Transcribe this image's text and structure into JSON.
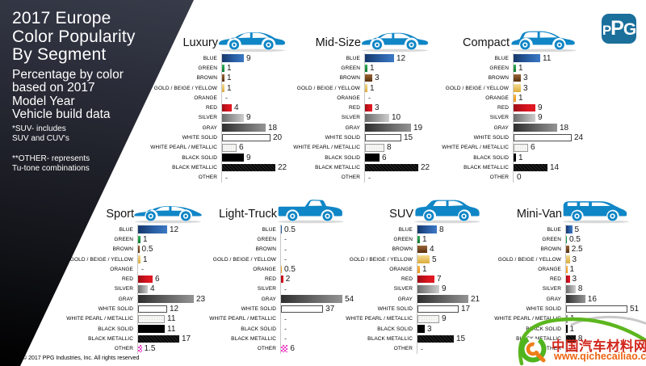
{
  "sidebar": {
    "title_lines": [
      "2017 Europe",
      "Color Popularity",
      "By Segment"
    ],
    "subtitle_lines": [
      "Percentage by color",
      "based on 2017",
      "Model Year",
      "Vehicle build data"
    ],
    "note1_lines": [
      "*SUV- includes",
      "SUV and CUV's"
    ],
    "note2_lines": [
      "**OTHER- represents",
      "Tu-tone combinations"
    ]
  },
  "logo": {
    "text": "PPG",
    "background": "#1a6f9b"
  },
  "footer": {
    "copyright": "© 2017 PPG Industries, Inc. All rights reserved"
  },
  "watermark": {
    "site_name": "中国汽车材料网",
    "site_url": "www.qichecailiao.com",
    "text_color": "#d2271c",
    "url_color": "#ee6410",
    "swoosh_green": "#5cb61f",
    "accent_orange": "#ef7d17"
  },
  "colors": {
    "car_blue": "#0f86c6",
    "palette": {
      "blue": "#2a5ea4",
      "green": "#1d9445",
      "brown": "#7a4a22",
      "gold": "#e8c367",
      "orange": "#f2a530",
      "red": "#d8141f",
      "silver": "#9c9c9c",
      "gray": "#5a5a5a",
      "white_solid": "#ffffff",
      "white_pearl": "#f6f6f4",
      "black_solid": "#000000",
      "black_metallic": "#060606",
      "other": "#ef3cc4"
    }
  },
  "chart_data": {
    "type": "bar",
    "orientation": "horizontal",
    "unit": "percent of builds",
    "title": "2017 Europe Color Popularity By Segment",
    "subtitle": "Percentage by color based on 2017 Model Year Vehicle build data",
    "categories": [
      "BLUE",
      "GREEN",
      "BROWN",
      "GOLD / BEIGE / YELLOW",
      "ORANGE",
      "RED",
      "SILVER",
      "GRAY",
      "WHITE SOLID",
      "WHITE PEARL / METALLIC",
      "BLACK SOLID",
      "BLACK METALLIC",
      "OTHER"
    ],
    "color_keys": [
      "blue",
      "green",
      "brown",
      "gold",
      "orange",
      "red",
      "silver",
      "gray",
      "white-solid",
      "white-pearl",
      "black-solid",
      "black-metallic",
      "other"
    ],
    "missing_marker": "-",
    "charts": [
      {
        "segment": "Luxury",
        "icon": "luxury-sedan-icon",
        "values": [
          "9",
          "1",
          "1",
          "1",
          "-",
          "4",
          "9",
          "18",
          "20",
          "6",
          "9",
          "22",
          "-"
        ]
      },
      {
        "segment": "Mid-Size",
        "icon": "mid-size-sedan-icon",
        "values": [
          "12",
          "1",
          "3",
          "1",
          "-",
          "3",
          "10",
          "19",
          "15",
          "8",
          "6",
          "22",
          "-"
        ]
      },
      {
        "segment": "Compact",
        "icon": "compact-hatchback-icon",
        "values": [
          "11",
          "1",
          "3",
          "3",
          "1",
          "9",
          "9",
          "18",
          "24",
          "6",
          "1",
          "14",
          "0"
        ]
      },
      {
        "segment": "Sport",
        "icon": "sport-car-icon",
        "values": [
          "12",
          "1",
          "0.5",
          "1",
          "-",
          "6",
          "4",
          "23",
          "12",
          "11",
          "11",
          "17",
          "1.5"
        ]
      },
      {
        "segment": "Light-Truck",
        "icon": "pickup-truck-icon",
        "values": [
          "0.5",
          "-",
          "-",
          "-",
          "0.5",
          "2",
          "-",
          "54",
          "37",
          "-",
          "-",
          "-",
          "6"
        ]
      },
      {
        "segment": "SUV",
        "icon": "suv-car-icon",
        "values": [
          "8",
          "1",
          "4",
          "5",
          "1",
          "7",
          "9",
          "21",
          "17",
          "9",
          "3",
          "15",
          "-"
        ]
      },
      {
        "segment": "Mini-Van",
        "icon": "mini-van-icon",
        "values": [
          "5",
          "0.5",
          "2.5",
          "3",
          "1",
          "3",
          "8",
          "16",
          "51",
          "1",
          "1",
          "8",
          "-"
        ]
      }
    ]
  }
}
